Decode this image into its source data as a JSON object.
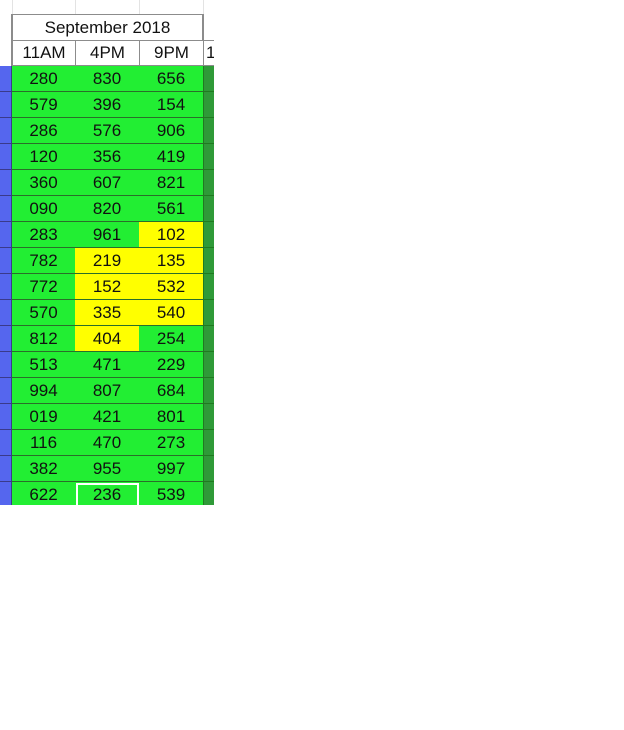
{
  "sheet": {
    "title": "September 2018",
    "headers": [
      "11AM",
      "4PM",
      "9PM"
    ],
    "right_header_partial": "1",
    "colors": {
      "green": "#22ee33",
      "yellow": "#ffff00",
      "left_column": "#5566ee",
      "right_column": "#2f9a38"
    },
    "rows": [
      {
        "values": [
          "280",
          "830",
          "656"
        ],
        "fills": [
          "green",
          "green",
          "green"
        ]
      },
      {
        "values": [
          "579",
          "396",
          "154"
        ],
        "fills": [
          "green",
          "green",
          "green"
        ]
      },
      {
        "values": [
          "286",
          "576",
          "906"
        ],
        "fills": [
          "green",
          "green",
          "green"
        ]
      },
      {
        "values": [
          "120",
          "356",
          "419"
        ],
        "fills": [
          "green",
          "green",
          "green"
        ]
      },
      {
        "values": [
          "360",
          "607",
          "821"
        ],
        "fills": [
          "green",
          "green",
          "green"
        ]
      },
      {
        "values": [
          "090",
          "820",
          "561"
        ],
        "fills": [
          "green",
          "green",
          "green"
        ]
      },
      {
        "values": [
          "283",
          "961",
          "102"
        ],
        "fills": [
          "green",
          "green",
          "yellow"
        ]
      },
      {
        "values": [
          "782",
          "219",
          "135"
        ],
        "fills": [
          "green",
          "yellow",
          "yellow"
        ]
      },
      {
        "values": [
          "772",
          "152",
          "532"
        ],
        "fills": [
          "green",
          "yellow",
          "yellow"
        ]
      },
      {
        "values": [
          "570",
          "335",
          "540"
        ],
        "fills": [
          "green",
          "yellow",
          "yellow"
        ]
      },
      {
        "values": [
          "812",
          "404",
          "254"
        ],
        "fills": [
          "green",
          "yellow",
          "green"
        ]
      },
      {
        "values": [
          "513",
          "471",
          "229"
        ],
        "fills": [
          "green",
          "green",
          "green"
        ]
      },
      {
        "values": [
          "994",
          "807",
          "684"
        ],
        "fills": [
          "green",
          "green",
          "green"
        ]
      },
      {
        "values": [
          "019",
          "421",
          "801"
        ],
        "fills": [
          "green",
          "green",
          "green"
        ]
      },
      {
        "values": [
          "116",
          "470",
          "273"
        ],
        "fills": [
          "green",
          "green",
          "green"
        ]
      },
      {
        "values": [
          "382",
          "955",
          "997"
        ],
        "fills": [
          "green",
          "green",
          "green"
        ]
      },
      {
        "values": [
          "622",
          "236",
          "539"
        ],
        "fills": [
          "green",
          "green",
          "green"
        ]
      }
    ],
    "selected_cell": {
      "row": 16,
      "col": 1
    }
  }
}
